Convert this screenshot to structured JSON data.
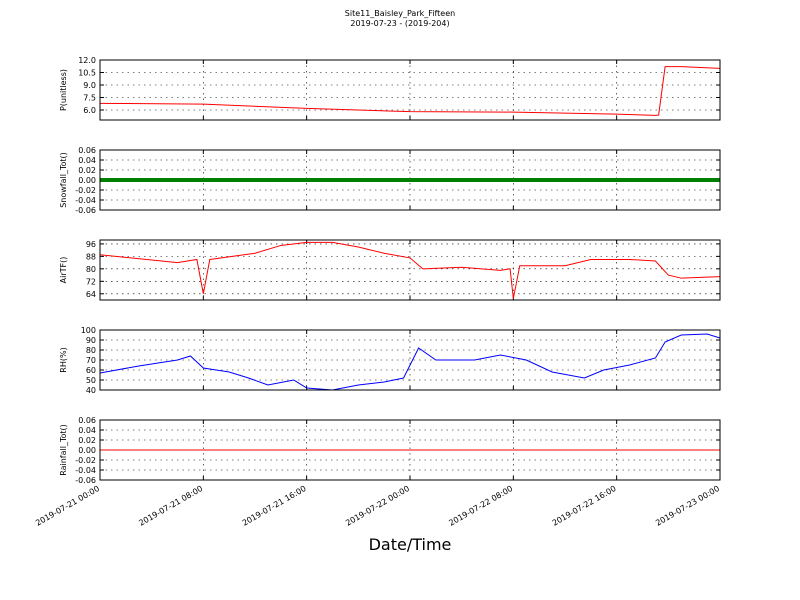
{
  "chart_data": [
    {
      "type": "line",
      "title": "Site11_Baisley_Park_Fifteen",
      "subtitle": "2019-07-23 - (2019-204)",
      "ylabel": "P(unitless)",
      "xlim": [
        "2019-07-21 00:00",
        "2019-07-23 00:00"
      ],
      "ylim": [
        4.8,
        12.0
      ],
      "yticks": [
        {
          "value": 6,
          "label": "6.0"
        },
        7.5,
        {
          "value": 9,
          "label": "9.0"
        },
        10.5,
        {
          "value": 12,
          "label": "12.0"
        }
      ],
      "grid": true,
      "x": [
        "2019-07-21 00:00",
        "2019-07-21 08:00",
        "2019-07-21 16:00",
        "2019-07-21 22:00",
        "2019-07-22 00:00",
        "2019-07-22 08:00",
        "2019-07-22 16:00",
        "2019-07-22 19:00",
        "2019-07-22 19:15",
        "2019-07-22 19:45",
        "2019-07-22 21:00",
        "2019-07-23 00:00"
      ],
      "series": [
        {
          "color": "#ff0000",
          "values": [
            6.8,
            6.7,
            6.2,
            5.9,
            5.8,
            5.75,
            5.5,
            5.35,
            5.4,
            11.2,
            11.2,
            11.0
          ]
        }
      ]
    },
    {
      "type": "line",
      "ylabel": "Snowfall_Tot()",
      "xlim": [
        "2019-07-21 00:00",
        "2019-07-23 00:00"
      ],
      "ylim": [
        -0.06,
        0.06
      ],
      "yticks": [
        -0.06,
        -0.04,
        -0.02,
        {
          "value": 0,
          "label": "0.00"
        },
        0.02,
        0.04,
        0.06
      ],
      "grid": true,
      "x": [
        "2019-07-21 00:00",
        "2019-07-21 08:00",
        "2019-07-21 16:00",
        "2019-07-22 00:00",
        "2019-07-22 08:00",
        "2019-07-22 16:00",
        "2019-07-23 00:00"
      ],
      "series": [
        {
          "color": "#008000",
          "values": [
            0,
            0,
            0,
            0,
            0,
            0,
            0
          ]
        }
      ]
    },
    {
      "type": "line",
      "ylabel": "AirTF()",
      "xlim": [
        "2019-07-21 00:00",
        "2019-07-23 00:00"
      ],
      "ylim": [
        60,
        98.5
      ],
      "yticks": [
        64,
        72,
        80,
        88,
        96
      ],
      "grid": true,
      "x": [
        "2019-07-21 00:00",
        "2019-07-21 06:00",
        "2019-07-21 07:30",
        "2019-07-21 08:00",
        "2019-07-21 08:30",
        "2019-07-21 12:00",
        "2019-07-21 14:00",
        "2019-07-21 16:00",
        "2019-07-21 18:00",
        "2019-07-21 20:00",
        "2019-07-21 22:00",
        "2019-07-22 00:00",
        "2019-07-22 01:00",
        "2019-07-22 04:00",
        "2019-07-22 07:00",
        "2019-07-22 07:45",
        "2019-07-22 08:00",
        "2019-07-22 08:30",
        "2019-07-22 12:00",
        "2019-07-22 14:00",
        "2019-07-22 17:00",
        "2019-07-22 19:00",
        "2019-07-22 20:00",
        "2019-07-22 21:00",
        "2019-07-23 00:00"
      ],
      "series": [
        {
          "color": "#ff0000",
          "values": [
            89,
            84,
            86,
            64,
            86,
            90,
            95,
            97,
            97,
            94,
            90,
            87,
            80,
            81,
            79,
            80,
            61,
            82,
            82,
            86,
            86,
            85,
            76,
            74,
            75
          ]
        }
      ]
    },
    {
      "type": "line",
      "ylabel": "RH(%)",
      "xlim": [
        "2019-07-21 00:00",
        "2019-07-23 00:00"
      ],
      "ylim": [
        40,
        100
      ],
      "yticks": [
        40,
        50,
        60,
        70,
        80,
        90,
        100
      ],
      "grid": true,
      "x": [
        "2019-07-21 00:00",
        "2019-07-21 03:00",
        "2019-07-21 06:00",
        "2019-07-21 07:00",
        "2019-07-21 08:00",
        "2019-07-21 10:00",
        "2019-07-21 11:30",
        "2019-07-21 13:00",
        "2019-07-21 15:00",
        "2019-07-21 16:00",
        "2019-07-21 18:00",
        "2019-07-21 20:00",
        "2019-07-21 22:00",
        "2019-07-21 23:30",
        "2019-07-22 00:40",
        "2019-07-22 02:00",
        "2019-07-22 05:00",
        "2019-07-22 07:00",
        "2019-07-22 09:00",
        "2019-07-22 11:00",
        "2019-07-22 13:30",
        "2019-07-22 15:00",
        "2019-07-22 17:00",
        "2019-07-22 19:00",
        "2019-07-22 19:45",
        "2019-07-22 21:00",
        "2019-07-22 23:00",
        "2019-07-23 00:00"
      ],
      "series": [
        {
          "color": "#0000ff",
          "values": [
            57,
            64,
            70,
            74,
            62,
            58,
            52,
            45,
            50,
            42,
            40,
            45,
            48,
            52,
            82,
            70,
            70,
            75,
            70,
            58,
            52,
            60,
            65,
            72,
            88,
            95,
            96,
            92
          ]
        }
      ]
    },
    {
      "type": "line",
      "ylabel": "Rainfall_Tot()",
      "xlabel": "Date/Time",
      "xlim": [
        "2019-07-21 00:00",
        "2019-07-23 00:00"
      ],
      "xticks": [
        "2019-07-21 00:00",
        "2019-07-21 08:00",
        "2019-07-21 16:00",
        "2019-07-22 00:00",
        "2019-07-22 08:00",
        "2019-07-22 16:00",
        "2019-07-23 00:00"
      ],
      "ylim": [
        -0.06,
        0.06
      ],
      "yticks": [
        -0.06,
        -0.04,
        -0.02,
        {
          "value": 0,
          "label": "0.00"
        },
        0.02,
        0.04,
        0.06
      ],
      "grid": true,
      "x": [
        "2019-07-21 00:00",
        "2019-07-21 08:00",
        "2019-07-21 16:00",
        "2019-07-22 00:00",
        "2019-07-22 08:00",
        "2019-07-22 16:00",
        "2019-07-23 00:00"
      ],
      "series": [
        {
          "color": "#ff0000",
          "values": [
            0,
            0,
            0,
            0,
            0,
            0,
            0
          ]
        }
      ]
    }
  ]
}
